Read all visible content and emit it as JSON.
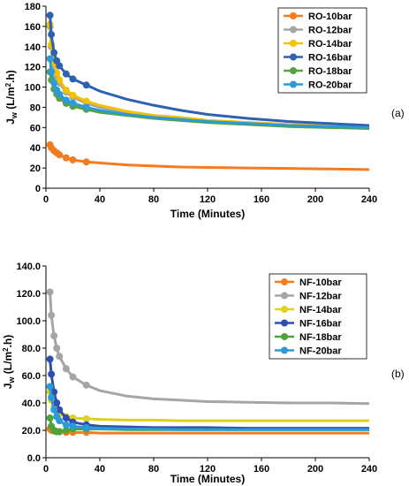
{
  "chart_data": [
    {
      "type": "scatter",
      "panel_label": "(a)",
      "xlabel": "Time (Minutes)",
      "ylabel": "J_w (L/m².h)",
      "ylabel_main": "J",
      "ylabel_sub": "w",
      "ylabel_rest": " (L/m",
      "ylabel_sup": "2",
      "ylabel_end": ".h)",
      "xlim": [
        0,
        240
      ],
      "ylim": [
        0,
        180
      ],
      "xticks": [
        0,
        40,
        80,
        120,
        160,
        200,
        240
      ],
      "yticks": [
        0,
        20,
        40,
        60,
        80,
        100,
        120,
        140,
        160,
        180
      ],
      "xtick_labels": [
        "0",
        "40",
        "80",
        "120",
        "160",
        "200",
        "240"
      ],
      "ytick_labels": [
        "0",
        "20",
        "40",
        "60",
        "80",
        "100",
        "120",
        "140",
        "160",
        "180"
      ],
      "grid": false,
      "legend_position": "top-right",
      "series": [
        {
          "name": "RO-10bar",
          "color": "#f47c20",
          "x": [
            3,
            4,
            6,
            8,
            10,
            15,
            20,
            30,
            40,
            60,
            80,
            100,
            120,
            150,
            180,
            210,
            240
          ],
          "y": [
            43,
            40,
            37,
            35,
            33,
            30,
            28,
            26,
            25,
            23,
            22,
            21,
            20.5,
            20,
            19.5,
            19,
            18.5
          ]
        },
        {
          "name": "RO-12bar",
          "color": "#a5a5a5",
          "x": [
            3,
            4,
            6,
            8,
            10,
            15,
            20,
            30,
            40,
            60,
            80,
            100,
            120,
            150,
            180,
            210,
            240
          ],
          "y": [
            160,
            140,
            120,
            110,
            104,
            95,
            90,
            84,
            80,
            75,
            72,
            69,
            67,
            65,
            63,
            62,
            61
          ]
        },
        {
          "name": "RO-14bar",
          "color": "#f2c100",
          "x": [
            3,
            4,
            6,
            8,
            10,
            15,
            20,
            30,
            40,
            60,
            80,
            100,
            120,
            150,
            180,
            210,
            240
          ],
          "y": [
            162,
            142,
            124,
            114,
            107,
            97,
            92,
            86,
            82,
            76,
            72,
            70,
            67,
            65,
            63,
            62,
            61
          ]
        },
        {
          "name": "RO-16bar",
          "color": "#2e62b0",
          "x": [
            3,
            4,
            6,
            8,
            10,
            15,
            20,
            30,
            40,
            60,
            80,
            100,
            120,
            150,
            180,
            210,
            240
          ],
          "y": [
            171,
            152,
            134,
            126,
            121,
            113,
            108,
            102,
            96,
            88,
            82,
            77,
            73,
            69,
            66,
            64,
            62
          ]
        },
        {
          "name": "RO-18bar",
          "color": "#58a33e",
          "x": [
            3,
            4,
            6,
            8,
            10,
            15,
            20,
            30,
            40,
            60,
            80,
            100,
            120,
            150,
            180,
            210,
            240
          ],
          "y": [
            115,
            107,
            98,
            93,
            89,
            84,
            81,
            78,
            75,
            72,
            69,
            67,
            65,
            63,
            61,
            60,
            59
          ]
        },
        {
          "name": "RO-20bar",
          "color": "#2b9ad8",
          "x": [
            3,
            4,
            6,
            8,
            10,
            15,
            20,
            30,
            40,
            60,
            80,
            100,
            120,
            150,
            180,
            210,
            240
          ],
          "y": [
            128,
            115,
            104,
            97,
            93,
            87,
            84,
            80,
            77,
            73,
            70,
            68,
            66,
            64,
            62,
            61,
            60
          ]
        }
      ]
    },
    {
      "type": "scatter",
      "panel_label": "(b)",
      "xlabel": "Time (Minutes)",
      "ylabel": "J_w (L/m².h)",
      "ylabel_main": "J",
      "ylabel_sub": "w",
      "ylabel_rest": " (L/m",
      "ylabel_sup": "2",
      "ylabel_end": ".h)",
      "xlim": [
        0,
        240
      ],
      "ylim": [
        0,
        140
      ],
      "xticks": [
        0,
        40,
        80,
        120,
        160,
        200,
        240
      ],
      "yticks": [
        0,
        20,
        40,
        60,
        80,
        100,
        120,
        140
      ],
      "xtick_labels": [
        "0",
        "40",
        "80",
        "120",
        "160",
        "200",
        "240"
      ],
      "ytick_labels": [
        "0.0",
        "20.0",
        "40.0",
        "60.0",
        "80.0",
        "100.0",
        "120.0",
        "140.0"
      ],
      "grid": false,
      "legend_position": "top-right",
      "series": [
        {
          "name": "NF-10bar",
          "color": "#f47c20",
          "x": [
            3,
            4,
            6,
            8,
            10,
            15,
            20,
            30,
            40,
            60,
            80,
            100,
            120,
            150,
            180,
            210,
            240
          ],
          "y": [
            21,
            20,
            19.5,
            19,
            19,
            18.5,
            18.5,
            18.5,
            18,
            18,
            18,
            18,
            18,
            18,
            18,
            18,
            18
          ]
        },
        {
          "name": "NF-12bar",
          "color": "#a5a5a5",
          "x": [
            3,
            4,
            6,
            8,
            10,
            15,
            20,
            30,
            40,
            60,
            80,
            100,
            120,
            150,
            180,
            210,
            240
          ],
          "y": [
            121,
            104,
            89,
            80,
            74,
            65,
            59,
            53,
            49,
            45,
            43,
            42,
            41,
            40.5,
            40,
            40,
            39.5
          ]
        },
        {
          "name": "NF-14bar",
          "color": "#e0d21a",
          "x": [
            3,
            4,
            6,
            8,
            10,
            15,
            20,
            30,
            40,
            60,
            80,
            100,
            120,
            150,
            180,
            210,
            240
          ],
          "y": [
            48,
            42,
            37,
            34,
            32,
            30,
            29,
            28.5,
            28,
            27.5,
            27.5,
            27,
            27,
            27,
            27,
            27,
            27
          ]
        },
        {
          "name": "NF-16bar",
          "color": "#2e4fae",
          "x": [
            3,
            4,
            6,
            8,
            10,
            15,
            20,
            30,
            40,
            60,
            80,
            100,
            120,
            150,
            180,
            210,
            240
          ],
          "y": [
            72,
            61,
            48,
            40,
            35,
            29,
            26,
            24,
            23,
            22.5,
            22,
            22,
            22,
            21.5,
            21.5,
            21.5,
            21.5
          ]
        },
        {
          "name": "NF-18bar",
          "color": "#4ea33a",
          "x": [
            3,
            4,
            6,
            8,
            10,
            15,
            20,
            30,
            40,
            60,
            80,
            100,
            120,
            150,
            180,
            210,
            240
          ],
          "y": [
            29,
            23,
            20,
            19,
            19,
            20,
            21,
            21,
            21,
            20.5,
            20.5,
            20.5,
            20.5,
            20.5,
            20.5,
            20.5,
            20.5
          ]
        },
        {
          "name": "NF-20bar",
          "color": "#2b9ad8",
          "x": [
            3,
            4,
            6,
            8,
            10,
            15,
            20,
            30,
            40,
            60,
            80,
            100,
            120,
            150,
            180,
            210,
            240
          ],
          "y": [
            52,
            44,
            35,
            30,
            27,
            24,
            23,
            22,
            21.5,
            21,
            21,
            20.5,
            20.5,
            20.5,
            20.5,
            20.5,
            20.5
          ]
        }
      ]
    }
  ]
}
